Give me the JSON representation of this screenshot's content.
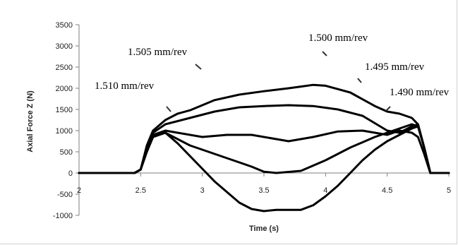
{
  "chart_data": {
    "type": "line",
    "title": "",
    "xlabel": "Time (s)",
    "ylabel": "Axial Force Z (N)",
    "xlim": [
      2,
      5
    ],
    "ylim": [
      -1000,
      3500
    ],
    "xticks": [
      2,
      2.5,
      3,
      3.5,
      4,
      4.5,
      5
    ],
    "yticks": [
      -1000,
      -500,
      0,
      500,
      1000,
      1500,
      2000,
      2500,
      3000,
      3500
    ],
    "grid": false,
    "legend": "none",
    "line_color": "#000000",
    "series": [
      {
        "name": "1.500 mm/rev",
        "x": [
          2.0,
          2.45,
          2.5,
          2.55,
          2.6,
          2.7,
          2.8,
          2.9,
          3.0,
          3.1,
          3.3,
          3.5,
          3.7,
          3.8,
          3.9,
          4.0,
          4.2,
          4.4,
          4.5,
          4.6,
          4.7,
          4.75,
          4.8,
          4.85,
          4.9,
          5.0
        ],
        "values": [
          0,
          0,
          80,
          650,
          1000,
          1250,
          1400,
          1480,
          1600,
          1720,
          1850,
          1930,
          2000,
          2040,
          2080,
          2060,
          1900,
          1580,
          1450,
          1400,
          1300,
          1150,
          600,
          0,
          0,
          0
        ]
      },
      {
        "name": "1.505 mm/rev",
        "x": [
          2.0,
          2.45,
          2.5,
          2.55,
          2.6,
          2.7,
          2.9,
          3.1,
          3.3,
          3.5,
          3.7,
          3.9,
          4.1,
          4.3,
          4.5,
          4.6,
          4.7,
          4.75,
          4.8,
          4.85,
          4.9,
          5.0
        ],
        "values": [
          0,
          0,
          80,
          600,
          950,
          1150,
          1300,
          1450,
          1550,
          1580,
          1600,
          1580,
          1500,
          1350,
          1000,
          950,
          1100,
          1150,
          600,
          0,
          0,
          0
        ]
      },
      {
        "name": "1.510 mm/rev",
        "x": [
          2.0,
          2.45,
          2.5,
          2.55,
          2.6,
          2.7,
          2.8,
          3.0,
          3.2,
          3.4,
          3.6,
          3.7,
          3.9,
          4.1,
          4.3,
          4.5,
          4.6,
          4.7,
          4.75,
          4.8,
          4.85,
          4.9,
          5.0
        ],
        "values": [
          0,
          0,
          80,
          600,
          900,
          1000,
          950,
          850,
          900,
          900,
          800,
          750,
          850,
          980,
          1000,
          900,
          1000,
          950,
          850,
          450,
          0,
          0,
          0
        ]
      },
      {
        "name": "1.495 mm/rev",
        "x": [
          2.0,
          2.45,
          2.5,
          2.55,
          2.6,
          2.7,
          2.8,
          2.9,
          3.0,
          3.2,
          3.4,
          3.5,
          3.6,
          3.8,
          4.0,
          4.2,
          4.4,
          4.5,
          4.6,
          4.7,
          4.75,
          4.8,
          4.85,
          4.9,
          5.0
        ],
        "values": [
          0,
          0,
          80,
          550,
          850,
          950,
          800,
          650,
          550,
          350,
          150,
          30,
          0,
          50,
          300,
          600,
          850,
          950,
          1050,
          1150,
          1100,
          600,
          0,
          0,
          0
        ]
      },
      {
        "name": "1.490 mm/rev",
        "x": [
          2.0,
          2.45,
          2.5,
          2.55,
          2.6,
          2.7,
          2.8,
          2.9,
          3.0,
          3.1,
          3.2,
          3.3,
          3.4,
          3.5,
          3.6,
          3.7,
          3.8,
          3.9,
          4.0,
          4.1,
          4.2,
          4.3,
          4.4,
          4.5,
          4.6,
          4.7,
          4.75,
          4.8,
          4.85,
          4.9,
          5.0
        ],
        "values": [
          0,
          0,
          80,
          500,
          850,
          950,
          700,
          400,
          100,
          -200,
          -450,
          -700,
          -850,
          -900,
          -870,
          -870,
          -870,
          -760,
          -550,
          -300,
          0,
          300,
          550,
          750,
          900,
          1050,
          1100,
          600,
          0,
          0,
          0
        ]
      }
    ],
    "annotations": [
      {
        "text": "1.500 mm/rev",
        "series": "1.500 mm/rev"
      },
      {
        "text": "1.505 mm/rev",
        "series": "1.505 mm/rev"
      },
      {
        "text": "1.510 mm/rev",
        "series": "1.510 mm/rev"
      },
      {
        "text": "1.495 mm/rev",
        "series": "1.495 mm/rev"
      },
      {
        "text": "1.490 mm/rev",
        "series": "1.490 mm/rev"
      }
    ]
  }
}
